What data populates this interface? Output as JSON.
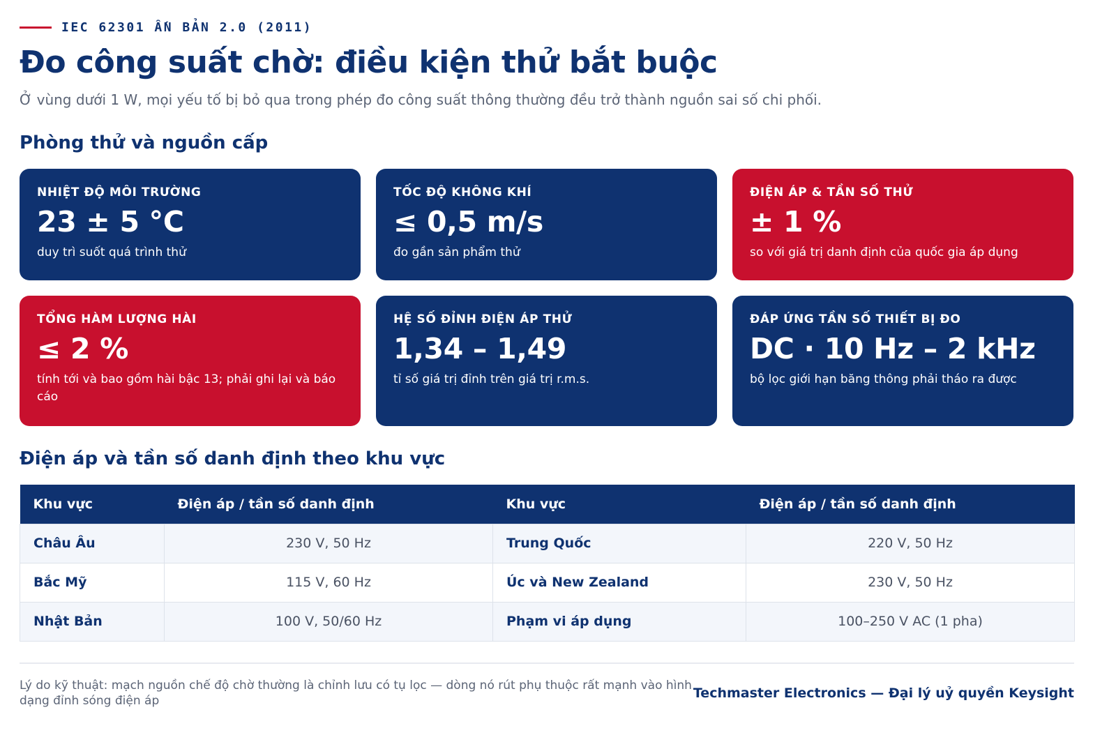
{
  "header": {
    "eyebrow": "IEC 62301 ẤN BẢN 2.0 (2011)",
    "title": "Đo công suất chờ: điều kiện thử bắt buộc",
    "subtitle": "Ở vùng dưới 1 W, mọi yếu tố bị bỏ qua trong phép đo công suất thông thường đều trở thành nguồn sai số chi phối."
  },
  "sections": {
    "conditions_heading": "Phòng thử và nguồn cấp",
    "table_heading": "Điện áp và tần số danh định theo khu vực"
  },
  "cards": [
    {
      "label": "Nhiệt độ môi trường",
      "value": "23 ± 5 °C",
      "note": "duy trì suốt quá trình thử",
      "variant": "navy"
    },
    {
      "label": "Tốc độ không khí",
      "value": "≤ 0,5 m/s",
      "note": "đo gần sản phẩm thử",
      "variant": "navy"
    },
    {
      "label": "Điện áp & tần số thử",
      "value": "± 1 %",
      "note": "so với giá trị danh định của quốc gia áp dụng",
      "variant": "red"
    },
    {
      "label": "Tổng hàm lượng hài",
      "value": "≤ 2 %",
      "note": "tính tới và bao gồm hài bậc 13; phải ghi lại và báo cáo",
      "variant": "red"
    },
    {
      "label": "Hệ số đỉnh điện áp thử",
      "value": "1,34 – 1,49",
      "note": "tỉ số giá trị đỉnh trên giá trị r.m.s.",
      "variant": "navy"
    },
    {
      "label": "Đáp ứng tần số thiết bị đo",
      "value": "DC · 10 Hz – 2 kHz",
      "note": "bộ lọc giới hạn băng thông phải tháo ra được",
      "variant": "navy"
    }
  ],
  "table": {
    "headers": [
      "Khu vực",
      "Điện áp / tần số danh định",
      "Khu vực",
      "Điện áp / tần số danh định"
    ],
    "rows": [
      [
        "Châu Âu",
        "230 V, 50 Hz",
        "Trung Quốc",
        "220 V, 50 Hz"
      ],
      [
        "Bắc Mỹ",
        "115 V, 60 Hz",
        "Úc và New Zealand",
        "230 V, 50 Hz"
      ],
      [
        "Nhật Bản",
        "100 V, 50/60 Hz",
        "Phạm vi áp dụng",
        "100–250 V AC (1 pha)"
      ]
    ]
  },
  "footer": {
    "footnote": "Lý do kỹ thuật: mạch nguồn chế độ chờ thường là chỉnh lưu có tụ lọc — dòng nó rút phụ thuộc rất mạnh vào hình dạng đỉnh sóng điện áp",
    "brand": "Techmaster Electronics — Đại lý uỷ quyền Keysight"
  },
  "colors": {
    "navy": "#0f3270",
    "red": "#c8102e",
    "muted_text": "#5b6476",
    "row_tint": "#f3f6fb"
  }
}
